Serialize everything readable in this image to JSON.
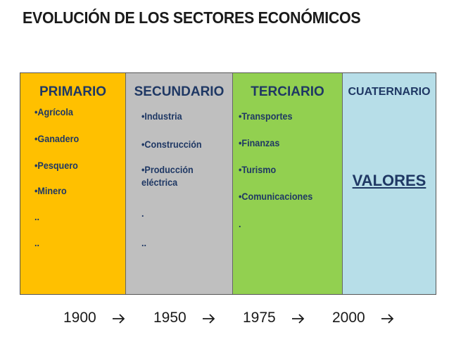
{
  "title": "EVOLUCIÓN DE LOS SECTORES ECONÓMICOS",
  "columns": [
    {
      "header": "PRIMARIO",
      "items": [
        "•Agrícola",
        "•Ganadero",
        "•Pesquero",
        "•Minero",
        "..",
        ".."
      ]
    },
    {
      "header": "SECUNDARIO",
      "items": [
        "•Industria",
        "•Construcción",
        "•Producción eléctrica",
        ".",
        ".."
      ]
    },
    {
      "header": "TERCIARIO",
      "items": [
        "•Transportes",
        "•Finanzas",
        "•Turismo",
        "•Comunicaciones",
        "."
      ]
    },
    {
      "header": "CUATERNARIO",
      "highlight": "VALORES"
    }
  ],
  "timeline": [
    "1900",
    "1950",
    "1975",
    "2000"
  ]
}
